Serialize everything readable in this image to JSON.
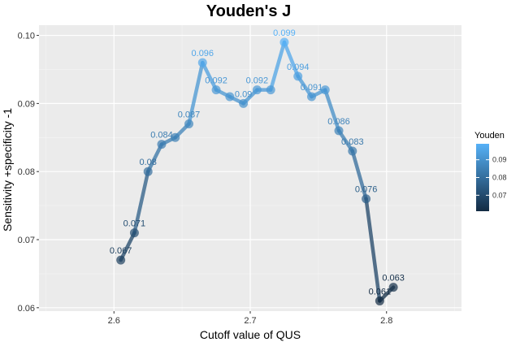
{
  "chart_data": {
    "type": "line",
    "title": "Youden's J",
    "xlabel": "Cutoff value of QUS",
    "ylabel": "Sensitivity +specificity -1",
    "xlim": [
      2.545,
      2.855
    ],
    "ylim": [
      0.0595,
      0.1015
    ],
    "x_ticks": [
      2.6,
      2.7,
      2.8
    ],
    "x_tick_labels": [
      "2.6",
      "2.7",
      "2.8"
    ],
    "y_ticks": [
      0.06,
      0.07,
      0.08,
      0.09,
      0.1
    ],
    "y_tick_labels": [
      "0.06",
      "0.07",
      "0.08",
      "0.09",
      "0.10"
    ],
    "grid": true,
    "panel_background": "#ebebeb",
    "points": [
      {
        "x": 2.605,
        "y": 0.067,
        "label": "0.067"
      },
      {
        "x": 2.615,
        "y": 0.071,
        "label": "0.071"
      },
      {
        "x": 2.625,
        "y": 0.08,
        "label": "0.08"
      },
      {
        "x": 2.635,
        "y": 0.084,
        "label": "0.084"
      },
      {
        "x": 2.645,
        "y": 0.085,
        "label": ""
      },
      {
        "x": 2.655,
        "y": 0.087,
        "label": "0.087"
      },
      {
        "x": 2.665,
        "y": 0.096,
        "label": "0.096"
      },
      {
        "x": 2.675,
        "y": 0.092,
        "label": "0.092"
      },
      {
        "x": 2.685,
        "y": 0.091,
        "label": ""
      },
      {
        "x": 2.695,
        "y": 0.09,
        "label": "0.09"
      },
      {
        "x": 2.705,
        "y": 0.092,
        "label": "0.092"
      },
      {
        "x": 2.715,
        "y": 0.092,
        "label": ""
      },
      {
        "x": 2.725,
        "y": 0.099,
        "label": "0.099"
      },
      {
        "x": 2.735,
        "y": 0.094,
        "label": "0.094"
      },
      {
        "x": 2.745,
        "y": 0.091,
        "label": "0.091"
      },
      {
        "x": 2.755,
        "y": 0.092,
        "label": ""
      },
      {
        "x": 2.765,
        "y": 0.086,
        "label": "0.086"
      },
      {
        "x": 2.775,
        "y": 0.083,
        "label": "0.083"
      },
      {
        "x": 2.785,
        "y": 0.076,
        "label": "0.076"
      },
      {
        "x": 2.795,
        "y": 0.061,
        "label": "0.061"
      },
      {
        "x": 2.805,
        "y": 0.063,
        "label": "0.063"
      }
    ],
    "color_scale": {
      "low_color": "#132b43",
      "high_color": "#56b1f7",
      "low_value": 0.061,
      "high_value": 0.099
    },
    "legend": {
      "title": "Youden",
      "position": "right",
      "ticks": [
        0.07,
        0.08,
        0.09
      ],
      "tick_labels": [
        "0.07",
        "0.08",
        "0.09"
      ]
    }
  }
}
